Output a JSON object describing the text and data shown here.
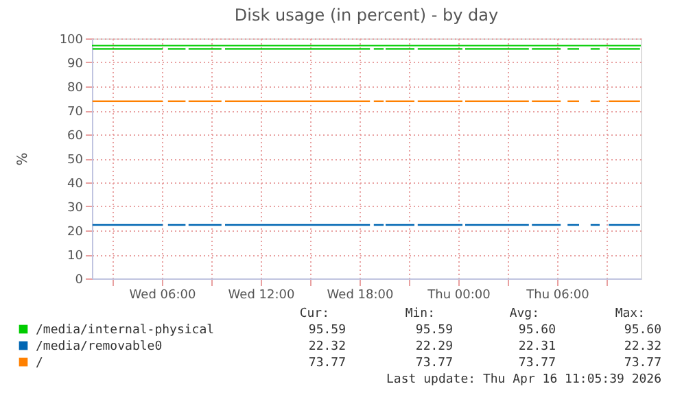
{
  "chart_data": {
    "type": "line",
    "title": "Disk usage (in percent) - by day",
    "ylabel": "%",
    "xlim": [
      "2026-04-15T01:45",
      "2026-04-16T11:05"
    ],
    "xticks": [
      {
        "value": "2026-04-15T03:00",
        "label": null
      },
      {
        "value": "2026-04-15T06:00",
        "label": "Wed 06:00"
      },
      {
        "value": "2026-04-15T09:00",
        "label": null
      },
      {
        "value": "2026-04-15T12:00",
        "label": "Wed 12:00"
      },
      {
        "value": "2026-04-15T15:00",
        "label": null
      },
      {
        "value": "2026-04-15T18:00",
        "label": "Wed 18:00"
      },
      {
        "value": "2026-04-15T21:00",
        "label": null
      },
      {
        "value": "2026-04-16T00:00",
        "label": "Thu 00:00"
      },
      {
        "value": "2026-04-16T03:00",
        "label": null
      },
      {
        "value": "2026-04-16T06:00",
        "label": "Thu 06:00"
      },
      {
        "value": "2026-04-16T09:00",
        "label": null
      }
    ],
    "ylim": [
      0,
      100
    ],
    "yticks": [
      0,
      10,
      20,
      30,
      40,
      50,
      60,
      70,
      80,
      90,
      100
    ],
    "grid": true,
    "legend": "bottom",
    "marker": "none",
    "line_style": "solid",
    "x": [
      "2026-04-15T01:47",
      "2026-04-15T06:03",
      "2026-04-15T06:12",
      "2026-04-15T06:22",
      "2026-04-15T07:26",
      "2026-04-15T07:31",
      "2026-04-15T07:37",
      "2026-04-15T09:37",
      "2026-04-15T09:44",
      "2026-04-15T09:50",
      "2026-04-15T18:38",
      "2026-04-15T18:45",
      "2026-04-15T18:52",
      "2026-04-15T19:28",
      "2026-04-15T19:31",
      "2026-04-15T19:35",
      "2026-04-15T21:20",
      "2026-04-15T21:26",
      "2026-04-15T21:32",
      "2026-04-16T00:15",
      "2026-04-16T00:20",
      "2026-04-16T00:25",
      "2026-04-16T04:17",
      "2026-04-16T04:22",
      "2026-04-16T04:28",
      "2026-04-16T06:13",
      "2026-04-16T06:25",
      "2026-04-16T06:38",
      "2026-04-16T07:20",
      "2026-04-16T07:40",
      "2026-04-16T08:02",
      "2026-04-16T08:35",
      "2026-04-16T08:50",
      "2026-04-16T09:08",
      "2026-04-16T11:02"
    ],
    "series": [
      {
        "name": "/media/internal-physical",
        "color": "#00cc00",
        "values": [
          95.6,
          95.6,
          null,
          95.6,
          95.6,
          null,
          95.6,
          95.6,
          null,
          95.6,
          95.6,
          null,
          95.6,
          95.6,
          null,
          95.6,
          95.6,
          null,
          95.6,
          95.6,
          null,
          95.6,
          95.6,
          null,
          95.6,
          95.6,
          null,
          95.6,
          95.6,
          null,
          95.6,
          95.6,
          null,
          95.6,
          95.6
        ]
      },
      {
        "name": "/media/removable0",
        "color": "#0066b3",
        "values": [
          22.3,
          22.3,
          null,
          22.3,
          22.3,
          null,
          22.3,
          22.3,
          null,
          22.3,
          22.3,
          null,
          22.3,
          22.3,
          null,
          22.3,
          22.3,
          null,
          22.3,
          22.3,
          null,
          22.3,
          22.3,
          null,
          22.3,
          22.3,
          null,
          22.3,
          22.3,
          null,
          22.3,
          22.3,
          null,
          22.3,
          22.3
        ]
      },
      {
        "name": "/",
        "color": "#ff8000",
        "values": [
          73.8,
          73.8,
          null,
          73.8,
          73.8,
          null,
          73.8,
          73.8,
          null,
          73.8,
          73.8,
          null,
          73.8,
          73.8,
          null,
          73.8,
          73.8,
          null,
          73.8,
          73.8,
          null,
          73.8,
          73.8,
          null,
          73.8,
          73.8,
          null,
          73.8,
          73.8,
          null,
          73.8,
          73.8,
          null,
          73.8,
          73.8
        ]
      }
    ],
    "ref_lines": [
      {
        "axis": "y",
        "value": 97,
        "label": null,
        "color": "#00cc00"
      }
    ],
    "annotations": [
      "Cur:",
      "Min:",
      "Avg:",
      "Max:",
      "95.59",
      "95.59",
      "95.60",
      "95.60",
      "22.32",
      "22.29",
      "22.31",
      "22.32",
      "73.77",
      "73.77",
      "73.77",
      "73.77",
      "Last update: Thu Apr 16 11:05:39 2026"
    ]
  }
}
